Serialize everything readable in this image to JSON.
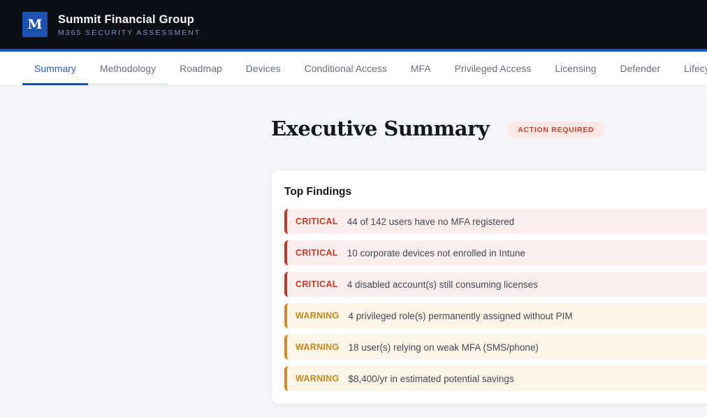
{
  "header": {
    "logo_letter": "M",
    "title": "Summit Financial Group",
    "subtitle": "M365 SECURITY ASSESSMENT"
  },
  "nav": {
    "tabs": [
      {
        "label": "Summary",
        "active": true
      },
      {
        "label": "Methodology",
        "hovered": true
      },
      {
        "label": "Roadmap"
      },
      {
        "label": "Devices"
      },
      {
        "label": "Conditional Access"
      },
      {
        "label": "MFA"
      },
      {
        "label": "Privileged Access"
      },
      {
        "label": "Licensing"
      },
      {
        "label": "Defender"
      },
      {
        "label": "Lifecycle"
      }
    ]
  },
  "main": {
    "page_title": "Executive Summary",
    "status_badge": "ACTION REQUIRED",
    "findings_card": {
      "title": "Top Findings",
      "items": [
        {
          "severity": "CRITICAL",
          "text": "44 of 142 users have no MFA registered"
        },
        {
          "severity": "CRITICAL",
          "text": "10 corporate devices not enrolled in Intune"
        },
        {
          "severity": "CRITICAL",
          "text": "4 disabled account(s) still consuming licenses"
        },
        {
          "severity": "WARNING",
          "text": "4 privileged role(s) permanently assigned without PIM"
        },
        {
          "severity": "WARNING",
          "text": "18 user(s) relying on weak MFA (SMS/phone)"
        },
        {
          "severity": "WARNING",
          "text": "$8,400/yr in estimated potential savings"
        }
      ]
    }
  },
  "colors": {
    "header_bg": "#0c0f16",
    "logo_bg": "#1f52ae",
    "subtitle_text": "#8095c0",
    "accent_bar": "#2155c3",
    "active_tab": "#2d5cb8",
    "inactive_tab": "#68707f",
    "page_bg": "#f4f5f9",
    "badge_bg": "#fce9e6",
    "badge_text": "#d23b2d",
    "critical_accent": "#c73b2d",
    "critical_bg": "#fceeec",
    "warning_accent": "#c9871d",
    "warning_bg": "#fdf5e7"
  }
}
